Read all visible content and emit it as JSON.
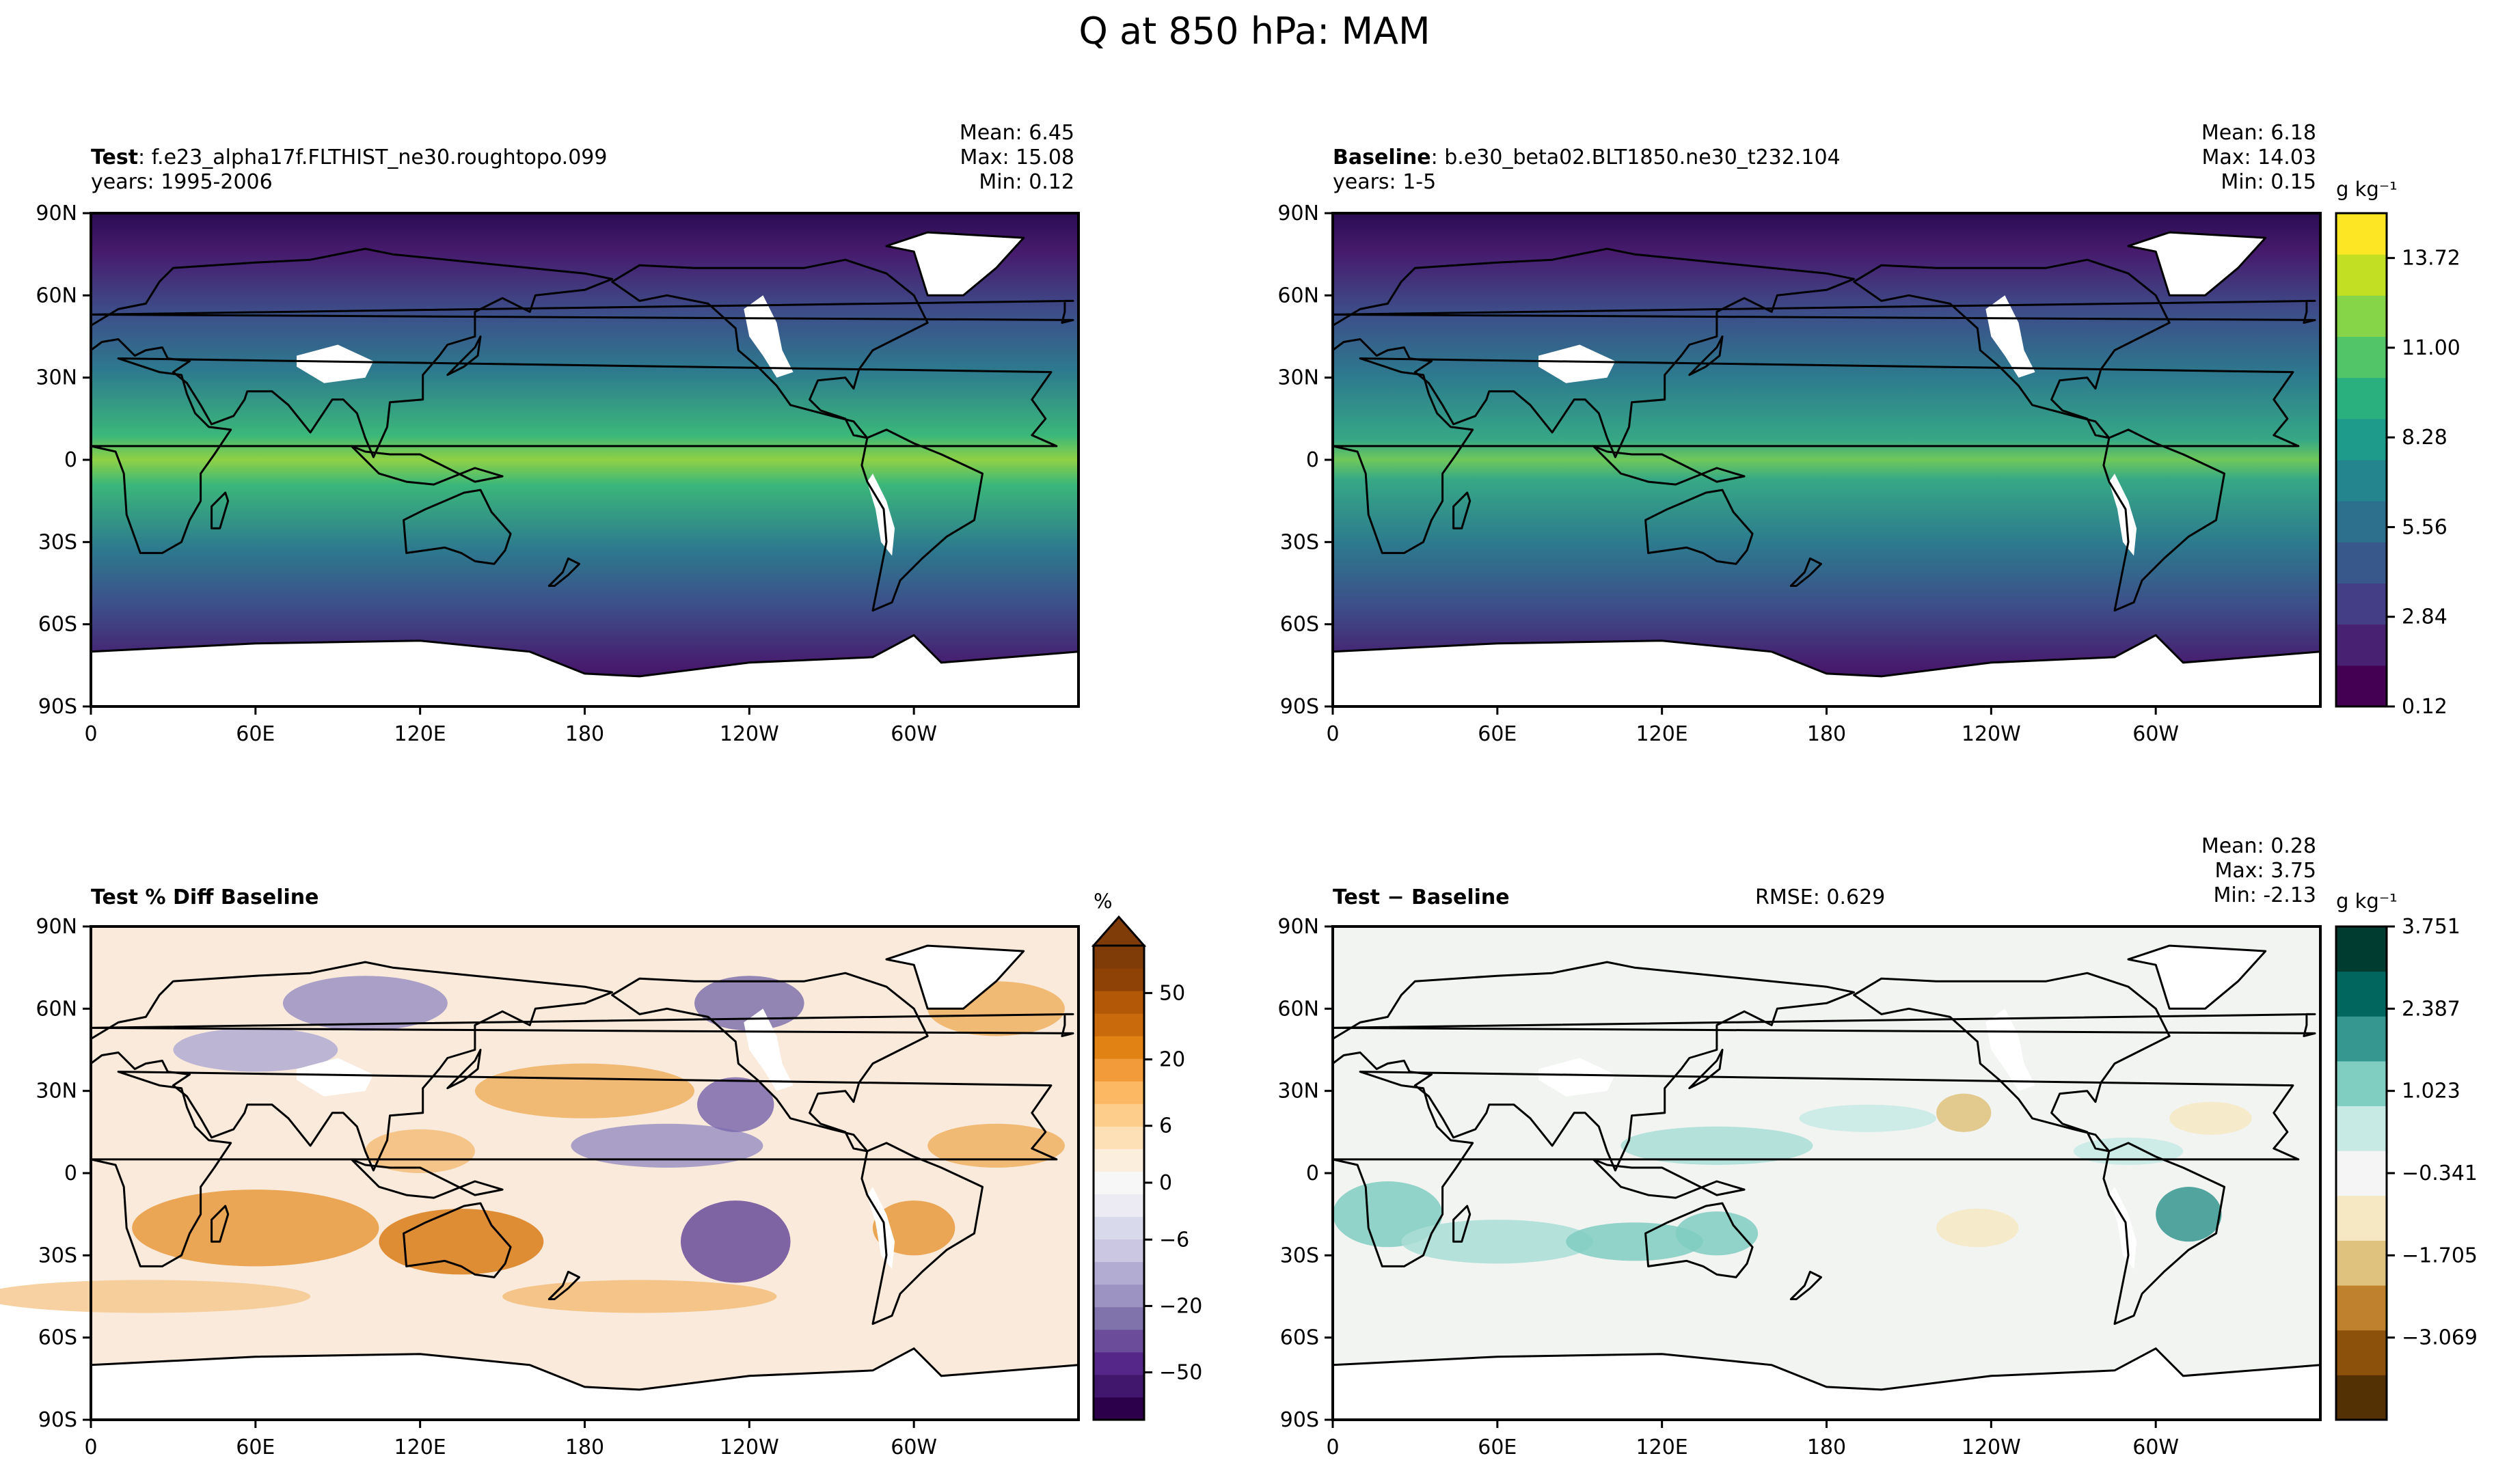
{
  "suptitle": "Q at 850 hPa: MAM",
  "panels": {
    "test": {
      "label": "Test",
      "case": ": f.e23_alpha17f.FLTHIST_ne30.roughtopo.099",
      "years": "years: 1995-2006",
      "mean": "Mean:  6.45",
      "max": "Max: 15.08",
      "min": "Min:  0.12"
    },
    "baseline": {
      "label": "Baseline",
      "case": ": b.e30_beta02.BLT1850.ne30_t232.104",
      "years": "years: 1-5",
      "mean": "Mean:  6.18",
      "max": "Max: 14.03",
      "min": "Min:  0.15"
    },
    "pctdiff": {
      "label": "Test % Diff Baseline"
    },
    "diff": {
      "label": "Test − Baseline",
      "rmse": "RMSE: 0.629",
      "mean": "Mean:  0.28",
      "max": "Max:  3.75",
      "min": "Min: -2.13"
    }
  },
  "colorbars": {
    "field": {
      "unit": "g kg⁻¹",
      "ticks": [
        "0.12",
        "2.84",
        "5.56",
        "8.28",
        "11.00",
        "13.72"
      ],
      "colors": [
        "#440154",
        "#482173",
        "#433e85",
        "#38588c",
        "#2d708e",
        "#25858e",
        "#1e9b8a",
        "#2ab07f",
        "#52c569",
        "#86d549",
        "#c2df23",
        "#fde725"
      ]
    },
    "pct": {
      "unit": "%",
      "ticks": [
        "50",
        "20",
        "6",
        "0",
        "−6",
        "−20",
        "−50"
      ],
      "colors": [
        "#2d004b",
        "#40176c",
        "#542788",
        "#6a4c9a",
        "#8073ac",
        "#9c93c3",
        "#b2abd2",
        "#cbc7e2",
        "#d8daeb",
        "#ecebf3",
        "#f7f7f7",
        "#fbeedc",
        "#fee0b6",
        "#fdcd8c",
        "#fdb863",
        "#f19b3a",
        "#e08214",
        "#c96a0c",
        "#b35806",
        "#8f4206",
        "#7f3b08"
      ]
    },
    "diff": {
      "unit": "g kg⁻¹",
      "ticks": [
        "3.751",
        "2.387",
        "1.023",
        "−0.341",
        "−1.705",
        "−3.069"
      ],
      "colors": [
        "#543005",
        "#8c510a",
        "#bf812d",
        "#dfc27d",
        "#f6e8c3",
        "#f5f5f5",
        "#c7eae5",
        "#80cdc1",
        "#35978f",
        "#01665e",
        "#003c30"
      ]
    }
  },
  "map_axes": {
    "lat_ticks": [
      "90N",
      "60N",
      "30N",
      "0",
      "30S",
      "60S",
      "90S"
    ],
    "lon_ticks": [
      "0",
      "60E",
      "120E",
      "180",
      "120W",
      "60W"
    ]
  },
  "chart_data": [
    {
      "type": "heatmap",
      "title": "Test: f.e23_alpha17f.FLTHIST_ne30.roughtopo.099",
      "variable": "Q at 850 hPa",
      "units": "g/kg",
      "levels_min": 0.12,
      "levels_max": 15.08,
      "stats": {
        "mean": 6.45,
        "max": 15.08,
        "min": 0.12
      },
      "lat_range": [
        -90,
        90
      ],
      "lon_range": [
        0,
        360
      ]
    },
    {
      "type": "heatmap",
      "title": "Baseline: b.e30_beta02.BLT1850.ne30_t232.104",
      "variable": "Q at 850 hPa",
      "units": "g/kg",
      "stats": {
        "mean": 6.18,
        "max": 14.03,
        "min": 0.15
      },
      "lat_range": [
        -90,
        90
      ],
      "lon_range": [
        0,
        360
      ]
    },
    {
      "type": "heatmap",
      "title": "Test % Diff Baseline",
      "units": "%",
      "levels": [
        -50,
        -20,
        -6,
        0,
        6,
        20,
        50
      ],
      "lat_range": [
        -90,
        90
      ],
      "lon_range": [
        0,
        360
      ]
    },
    {
      "type": "heatmap",
      "title": "Test − Baseline",
      "units": "g/kg",
      "rmse": 0.629,
      "stats": {
        "mean": 0.28,
        "max": 3.75,
        "min": -2.13
      },
      "levels": [
        -3.069,
        -1.705,
        -0.341,
        1.023,
        2.387,
        3.751
      ],
      "lat_range": [
        -90,
        90
      ],
      "lon_range": [
        0,
        360
      ]
    }
  ]
}
